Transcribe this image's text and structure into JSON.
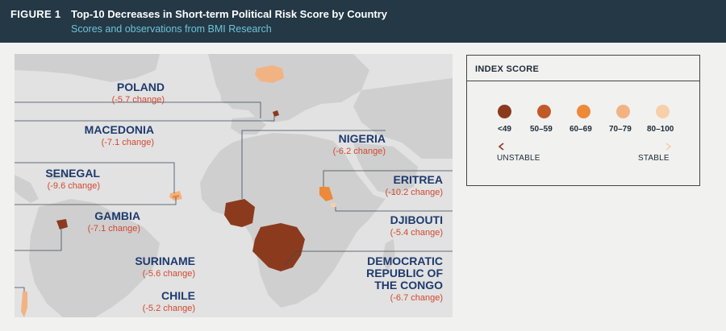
{
  "header": {
    "figure_label": "FIGURE 1",
    "title": "Top-10 Decreases in Short-term Political Risk Score by Country",
    "subtitle": "Scores and observations from BMI Research"
  },
  "countries": [
    {
      "id": "poland",
      "name": "POLAND",
      "change": "(-5.7 change)"
    },
    {
      "id": "macedonia",
      "name": "MACEDONIA",
      "change": "(-7.1 change)"
    },
    {
      "id": "senegal",
      "name": "SENEGAL",
      "change": "(-9.6 change)"
    },
    {
      "id": "gambia",
      "name": "GAMBIA",
      "change": "(-7.1 change)"
    },
    {
      "id": "suriname",
      "name": "SURINAME",
      "change": "(-5.6 change)"
    },
    {
      "id": "chile",
      "name": "CHILE",
      "change": "(-5.2 change)"
    },
    {
      "id": "nigeria",
      "name": "NIGERIA",
      "change": "(-6.2 change)"
    },
    {
      "id": "eritrea",
      "name": "ERITREA",
      "change": "(-10.2 change)"
    },
    {
      "id": "djibouti",
      "name": "DJIBOUTI",
      "change": "(-5.4 change)"
    },
    {
      "id": "drc",
      "name": "DEMOCRATIC\nREPUBLIC OF\nTHE CONGO",
      "change": "(-6.7 change)"
    }
  ],
  "legend": {
    "title": "INDEX SCORE",
    "items": [
      {
        "label": "<49",
        "color": "#8b3a1e"
      },
      {
        "label": "50–59",
        "color": "#c15a28"
      },
      {
        "label": "60–69",
        "color": "#ec8a3a"
      },
      {
        "label": "70–79",
        "color": "#f2b383"
      },
      {
        "label": "80–100",
        "color": "#f7cfa9"
      }
    ],
    "unstable_label": "UNSTABLE",
    "stable_label": "STABLE"
  },
  "colors": {
    "header_bg": "#243846",
    "subtitle": "#6fc3d6",
    "country_name": "#1e3a6e",
    "change_text": "#d2482f",
    "land": "#cfcfcf",
    "ocean": "#e2e2e2"
  }
}
